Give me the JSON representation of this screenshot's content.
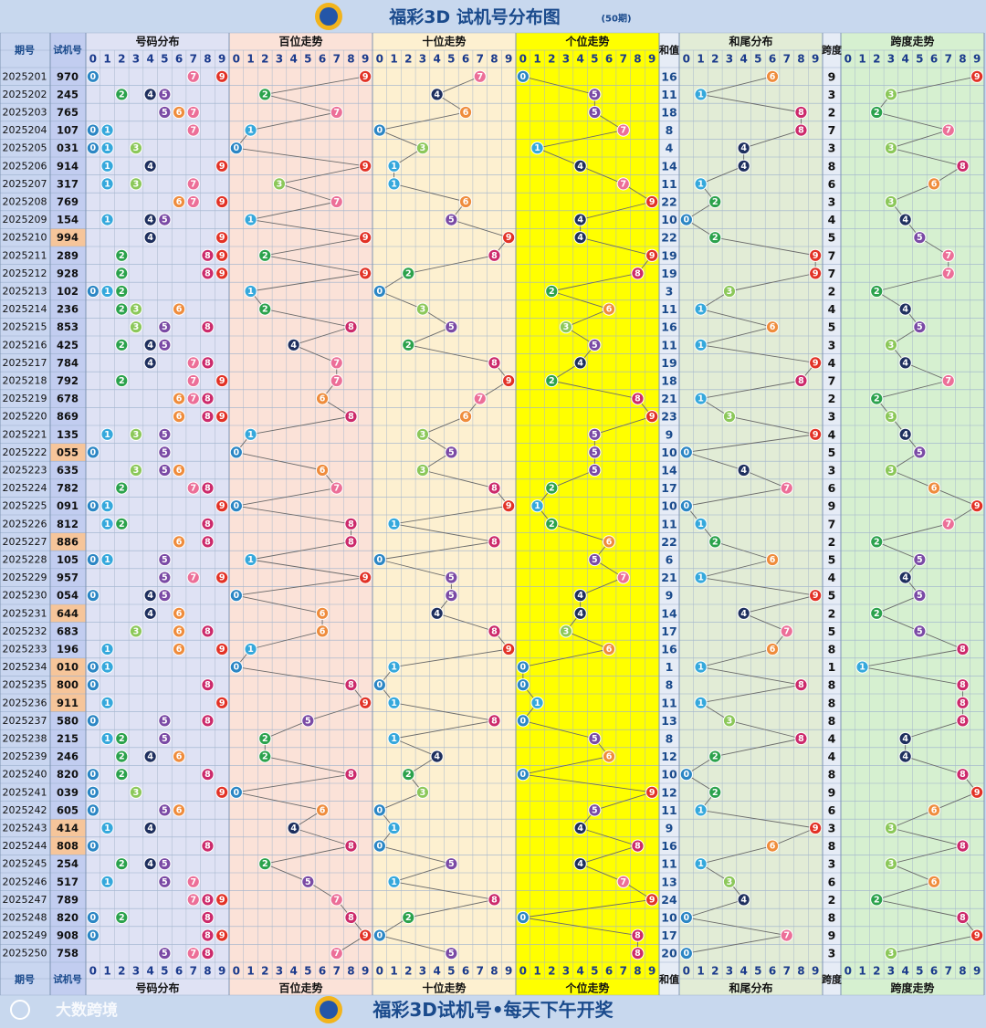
{
  "header": {
    "title": "福彩3D 试机号分布图",
    "period_count": "(50期)"
  },
  "footer": {
    "slogan": "福彩3D试机号•每天下午开奖",
    "watermark": "大数跨境"
  },
  "columns": {
    "period": "期号",
    "trial": "试机号",
    "number_dist": "号码分布",
    "hundreds": "百位走势",
    "tens": "十位走势",
    "units": "个位走势",
    "sum": "和值",
    "sum_tail": "和尾分布",
    "span": "跨度",
    "span_trend": "跨度走势",
    "digits": [
      "0",
      "1",
      "2",
      "3",
      "4",
      "5",
      "6",
      "7",
      "8",
      "9"
    ]
  },
  "colors": {
    "digit_colors": [
      "#2b86c4",
      "#35a8dc",
      "#2ba24c",
      "#8cc85a",
      "#1e2f5e",
      "#7a4aa5",
      "#ef8c3c",
      "#ec6f98",
      "#cc2a6b",
      "#e23226"
    ],
    "panel_number_dist": "#dfe2f4",
    "panel_hundreds": "#fbe2d8",
    "panel_tens": "#fdf0d0",
    "panel_units": "#ffff00",
    "panel_sum_tail": "#e2ecd6",
    "panel_span_trend": "#d6f0d0",
    "header_bg": "#c8d8ee",
    "text_blue": "#1a4a8c"
  },
  "chart_data": {
    "type": "table",
    "title": "福彩3D 试机号分布图",
    "rows": [
      {
        "period": "2025201",
        "trial": "970",
        "sum": 16,
        "span": 9
      },
      {
        "period": "2025202",
        "trial": "245",
        "sum": 11,
        "span": 3
      },
      {
        "period": "2025203",
        "trial": "765",
        "sum": 18,
        "span": 2
      },
      {
        "period": "2025204",
        "trial": "107",
        "sum": 8,
        "span": 7
      },
      {
        "period": "2025205",
        "trial": "031",
        "sum": 4,
        "span": 3
      },
      {
        "period": "2025206",
        "trial": "914",
        "sum": 14,
        "span": 8
      },
      {
        "period": "2025207",
        "trial": "317",
        "sum": 11,
        "span": 6
      },
      {
        "period": "2025208",
        "trial": "769",
        "sum": 22,
        "span": 3
      },
      {
        "period": "2025209",
        "trial": "154",
        "sum": 10,
        "span": 4
      },
      {
        "period": "2025210",
        "trial": "994",
        "sum": 22,
        "span": 5
      },
      {
        "period": "2025211",
        "trial": "289",
        "sum": 19,
        "span": 7
      },
      {
        "period": "2025212",
        "trial": "928",
        "sum": 19,
        "span": 7
      },
      {
        "period": "2025213",
        "trial": "102",
        "sum": 3,
        "span": 2
      },
      {
        "period": "2025214",
        "trial": "236",
        "sum": 11,
        "span": 4
      },
      {
        "period": "2025215",
        "trial": "853",
        "sum": 16,
        "span": 5
      },
      {
        "period": "2025216",
        "trial": "425",
        "sum": 11,
        "span": 3
      },
      {
        "period": "2025217",
        "trial": "784",
        "sum": 19,
        "span": 4
      },
      {
        "period": "2025218",
        "trial": "792",
        "sum": 18,
        "span": 7
      },
      {
        "period": "2025219",
        "trial": "678",
        "sum": 21,
        "span": 2
      },
      {
        "period": "2025220",
        "trial": "869",
        "sum": 23,
        "span": 3
      },
      {
        "period": "2025221",
        "trial": "135",
        "sum": 9,
        "span": 4
      },
      {
        "period": "2025222",
        "trial": "055",
        "sum": 10,
        "span": 5
      },
      {
        "period": "2025223",
        "trial": "635",
        "sum": 14,
        "span": 3
      },
      {
        "period": "2025224",
        "trial": "782",
        "sum": 17,
        "span": 6
      },
      {
        "period": "2025225",
        "trial": "091",
        "sum": 10,
        "span": 9
      },
      {
        "period": "2025226",
        "trial": "812",
        "sum": 11,
        "span": 7
      },
      {
        "period": "2025227",
        "trial": "886",
        "sum": 22,
        "span": 2
      },
      {
        "period": "2025228",
        "trial": "105",
        "sum": 6,
        "span": 5
      },
      {
        "period": "2025229",
        "trial": "957",
        "sum": 21,
        "span": 4
      },
      {
        "period": "2025230",
        "trial": "054",
        "sum": 9,
        "span": 5
      },
      {
        "period": "2025231",
        "trial": "644",
        "sum": 14,
        "span": 2
      },
      {
        "period": "2025232",
        "trial": "683",
        "sum": 17,
        "span": 5
      },
      {
        "period": "2025233",
        "trial": "196",
        "sum": 16,
        "span": 8
      },
      {
        "period": "2025234",
        "trial": "010",
        "sum": 1,
        "span": 1
      },
      {
        "period": "2025235",
        "trial": "800",
        "sum": 8,
        "span": 8
      },
      {
        "period": "2025236",
        "trial": "911",
        "sum": 11,
        "span": 8
      },
      {
        "period": "2025237",
        "trial": "580",
        "sum": 13,
        "span": 8
      },
      {
        "period": "2025238",
        "trial": "215",
        "sum": 8,
        "span": 4
      },
      {
        "period": "2025239",
        "trial": "246",
        "sum": 12,
        "span": 4
      },
      {
        "period": "2025240",
        "trial": "820",
        "sum": 10,
        "span": 8
      },
      {
        "period": "2025241",
        "trial": "039",
        "sum": 12,
        "span": 9
      },
      {
        "period": "2025242",
        "trial": "605",
        "sum": 11,
        "span": 6
      },
      {
        "period": "2025243",
        "trial": "414",
        "sum": 9,
        "span": 3
      },
      {
        "period": "2025244",
        "trial": "808",
        "sum": 16,
        "span": 8
      },
      {
        "period": "2025245",
        "trial": "254",
        "sum": 11,
        "span": 3
      },
      {
        "period": "2025246",
        "trial": "517",
        "sum": 13,
        "span": 6
      },
      {
        "period": "2025247",
        "trial": "789",
        "sum": 24,
        "span": 2
      },
      {
        "period": "2025248",
        "trial": "820",
        "sum": 10,
        "span": 8
      },
      {
        "period": "2025249",
        "trial": "908",
        "sum": 17,
        "span": 9
      },
      {
        "period": "2025250",
        "trial": "758",
        "sum": 20,
        "span": 3
      }
    ]
  }
}
